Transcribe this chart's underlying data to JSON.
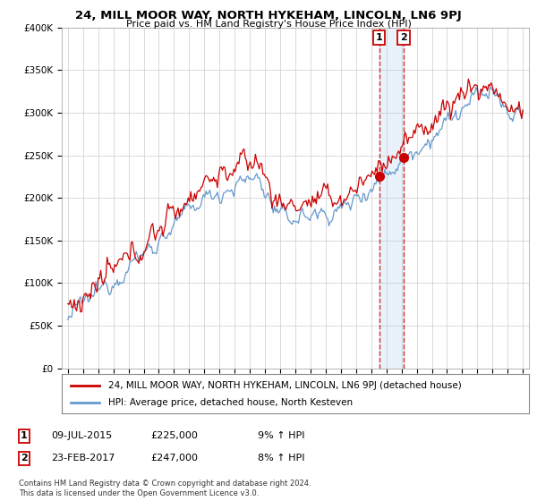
{
  "title": "24, MILL MOOR WAY, NORTH HYKEHAM, LINCOLN, LN6 9PJ",
  "subtitle": "Price paid vs. HM Land Registry's House Price Index (HPI)",
  "legend_line1": "24, MILL MOOR WAY, NORTH HYKEHAM, LINCOLN, LN6 9PJ (detached house)",
  "legend_line2": "HPI: Average price, detached house, North Kesteven",
  "transactions": [
    {
      "label": "1",
      "date": "09-JUL-2015",
      "price": "£225,000",
      "hpi": "9% ↑ HPI",
      "year": 2015.52
    },
    {
      "label": "2",
      "date": "23-FEB-2017",
      "price": "£247,000",
      "hpi": "8% ↑ HPI",
      "year": 2017.14
    }
  ],
  "footer": "Contains HM Land Registry data © Crown copyright and database right 2024.\nThis data is licensed under the Open Government Licence v3.0.",
  "ylim": [
    0,
    400000
  ],
  "yticks": [
    0,
    50000,
    100000,
    150000,
    200000,
    250000,
    300000,
    350000,
    400000
  ],
  "ytick_labels": [
    "£0",
    "£50K",
    "£100K",
    "£150K",
    "£200K",
    "£250K",
    "£300K",
    "£350K",
    "£400K"
  ],
  "red_color": "#cc0000",
  "blue_color": "#6699cc",
  "span_color": "#aaccee",
  "background_color": "#ffffff",
  "grid_color": "#cccccc",
  "marker1_y": 225000,
  "marker2_y": 247000,
  "xlim_left": 1994.6,
  "xlim_right": 2025.4
}
